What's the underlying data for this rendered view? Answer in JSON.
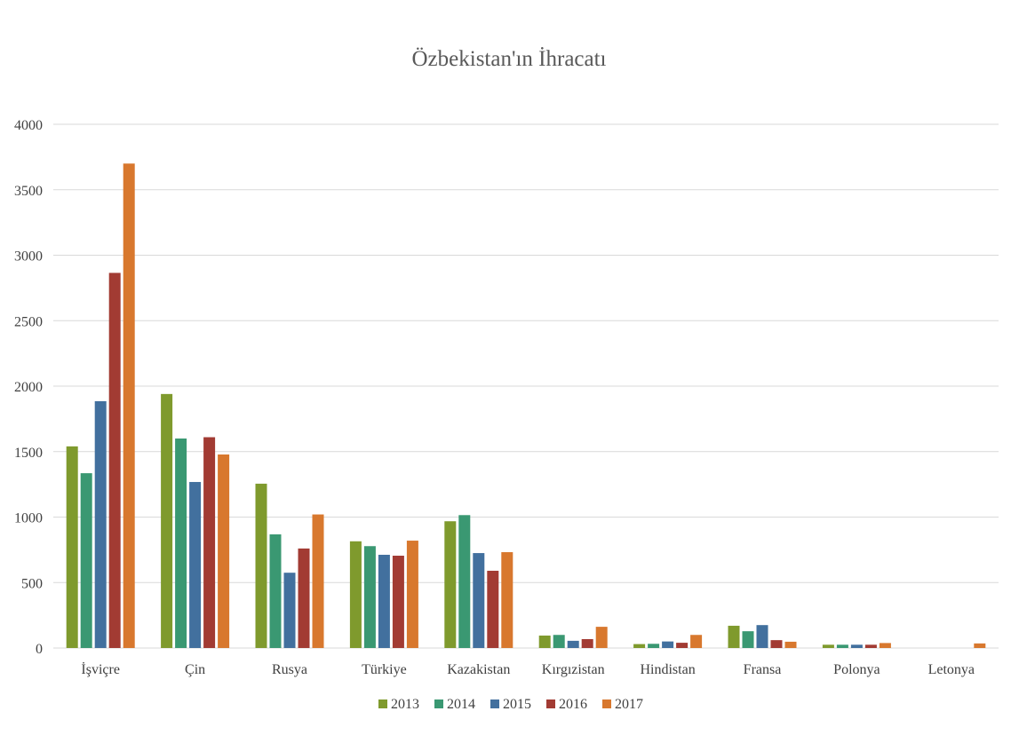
{
  "chart_data": {
    "type": "bar",
    "title": "Özbekistan'ın İhracatı",
    "xlabel": "",
    "ylabel": "",
    "ylim": [
      0,
      4000
    ],
    "yticks": [
      0,
      500,
      1000,
      1500,
      2000,
      2500,
      3000,
      3500,
      4000
    ],
    "grid": true,
    "legend_position": "bottom",
    "categories": [
      "İşviçre",
      "Çin",
      "Rusya",
      "Türkiye",
      "Kazakistan",
      "Kırgızistan",
      "Hindistan",
      "Fransa",
      "Polonya",
      "Letonya"
    ],
    "series": [
      {
        "name": "2013",
        "color": "#7f9a2d",
        "values": [
          1540,
          1940,
          1255,
          815,
          968,
          95,
          30,
          170,
          25,
          0
        ]
      },
      {
        "name": "2014",
        "color": "#3a9872",
        "values": [
          1335,
          1600,
          868,
          778,
          1015,
          100,
          32,
          128,
          25,
          0
        ]
      },
      {
        "name": "2015",
        "color": "#42709e",
        "values": [
          1885,
          1268,
          575,
          712,
          725,
          55,
          50,
          175,
          25,
          0
        ]
      },
      {
        "name": "2016",
        "color": "#a23b33",
        "values": [
          2865,
          1610,
          760,
          705,
          590,
          68,
          40,
          60,
          25,
          0
        ]
      },
      {
        "name": "2017",
        "color": "#d8782e",
        "values": [
          3700,
          1478,
          1020,
          820,
          732,
          162,
          100,
          48,
          38,
          35
        ]
      }
    ]
  }
}
